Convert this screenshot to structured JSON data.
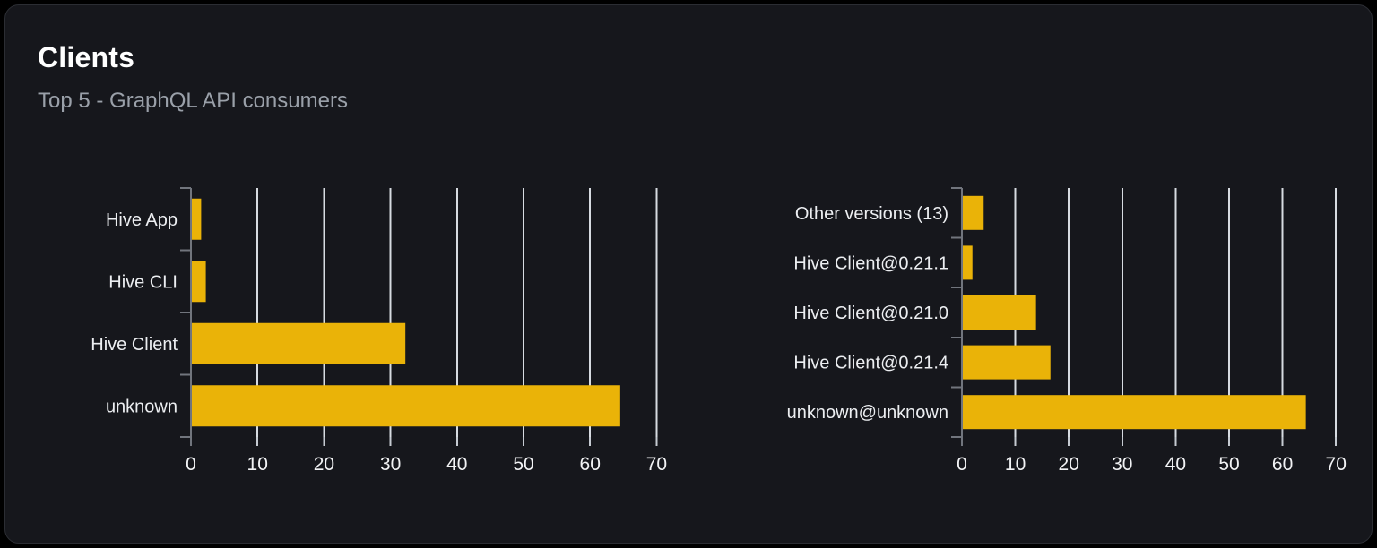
{
  "header": {
    "title": "Clients",
    "subtitle": "Top 5 - GraphQL API consumers"
  },
  "colors": {
    "page_background": "#000000",
    "card_background": "#16171c",
    "card_border": "#2b2d33",
    "bar": "#eab308",
    "gridline": "#d7dbe1",
    "axis_line": "#71757d",
    "value_tick": "#c6cbd2",
    "category_label": "#eceef1",
    "value_label": "#f2f3f5",
    "title_text": "#ffffff",
    "subtitle_text": "#9aa0a9"
  },
  "chart_data": [
    {
      "type": "bar",
      "orientation": "horizontal",
      "name": "clients-by-name",
      "categories": [
        "Hive App",
        "Hive CLI",
        "Hive Client",
        "unknown"
      ],
      "values": [
        1.4,
        2.1,
        32.1,
        64.4
      ],
      "xticks": [
        0,
        10,
        20,
        30,
        40,
        50,
        60,
        70
      ],
      "xlim": [
        0,
        70
      ],
      "grid": true,
      "legend": false,
      "title": "",
      "xlabel": "",
      "ylabel": ""
    },
    {
      "type": "bar",
      "orientation": "horizontal",
      "name": "clients-by-version",
      "categories": [
        "Other versions (13)",
        "Hive Client@0.21.1",
        "Hive Client@0.21.0",
        "Hive Client@0.21.4",
        "unknown@unknown"
      ],
      "values": [
        3.9,
        1.8,
        13.7,
        16.4,
        64.2
      ],
      "xticks": [
        0,
        10,
        20,
        30,
        40,
        50,
        60,
        70
      ],
      "xlim": [
        0,
        70
      ],
      "grid": true,
      "legend": false,
      "title": "",
      "xlabel": "",
      "ylabel": ""
    }
  ]
}
